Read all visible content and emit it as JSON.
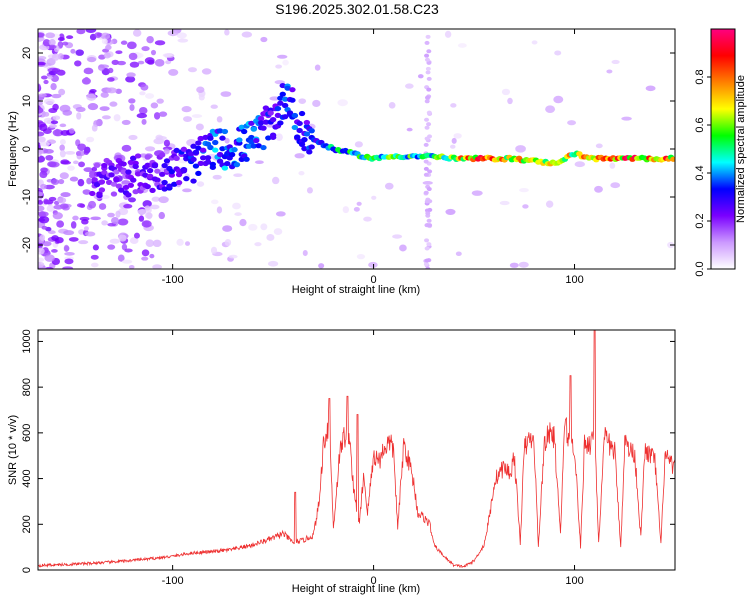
{
  "title": "S196.2025.302.01.58.C23",
  "chart_data": [
    {
      "type": "heatmap",
      "xlabel": "Height of straight line (km)",
      "ylabel": "Frequency (Hz)",
      "xlim": [
        -167,
        150
      ],
      "ylim": [
        -25,
        25
      ],
      "x_ticks": [
        -100,
        0,
        100
      ],
      "y_ticks": [
        -20,
        -10,
        0,
        10,
        20
      ],
      "colorbar": {
        "label": "Normalized spectral amplitude",
        "range": [
          0,
          1
        ],
        "ticks": [
          "0.0",
          "0.2",
          "0.4",
          "0.6",
          "0.8"
        ],
        "tick_values": [
          0,
          0.2,
          0.4,
          0.6,
          0.8
        ],
        "colors": [
          "#ffffff",
          "#cc99ff",
          "#7a00ff",
          "#0000ff",
          "#00ffff",
          "#00ff00",
          "#ffff00",
          "#ff8000",
          "#ff0000",
          "#ff0080"
        ]
      },
      "ridge": [
        {
          "x": -130,
          "y": -6,
          "amp": 0.25
        },
        {
          "x": -110,
          "y": -5,
          "amp": 0.25
        },
        {
          "x": -100,
          "y": -4,
          "amp": 0.3
        },
        {
          "x": -90,
          "y": -3,
          "amp": 0.35
        },
        {
          "x": -80,
          "y": 0,
          "amp": 0.4
        },
        {
          "x": -70,
          "y": 0,
          "amp": 0.4
        },
        {
          "x": -60,
          "y": 2,
          "amp": 0.4
        },
        {
          "x": -50,
          "y": 6,
          "amp": 0.3
        },
        {
          "x": -42,
          "y": 12,
          "amp": 0.4
        },
        {
          "x": -38,
          "y": 4,
          "amp": 0.35
        },
        {
          "x": -30,
          "y": 2,
          "amp": 0.35
        },
        {
          "x": -20,
          "y": 0,
          "amp": 0.5
        },
        {
          "x": -10,
          "y": -1,
          "amp": 0.55
        },
        {
          "x": 0,
          "y": -2,
          "amp": 0.6
        },
        {
          "x": 10,
          "y": -1.5,
          "amp": 0.6
        },
        {
          "x": 20,
          "y": -1.5,
          "amp": 0.55
        },
        {
          "x": 30,
          "y": -1.5,
          "amp": 0.55
        },
        {
          "x": 40,
          "y": -2,
          "amp": 0.8
        },
        {
          "x": 50,
          "y": -2,
          "amp": 0.9
        },
        {
          "x": 60,
          "y": -2,
          "amp": 0.9
        },
        {
          "x": 70,
          "y": -2,
          "amp": 0.8
        },
        {
          "x": 80,
          "y": -2.5,
          "amp": 0.75
        },
        {
          "x": 90,
          "y": -3,
          "amp": 0.7
        },
        {
          "x": 100,
          "y": -1,
          "amp": 0.75
        },
        {
          "x": 110,
          "y": -2,
          "amp": 0.8
        },
        {
          "x": 120,
          "y": -2,
          "amp": 0.9
        },
        {
          "x": 130,
          "y": -2,
          "amp": 0.9
        },
        {
          "x": 140,
          "y": -2,
          "amp": 0.9
        },
        {
          "x": 150,
          "y": -2,
          "amp": 0.85
        }
      ]
    },
    {
      "type": "line",
      "xlabel": "Height of straight line (km)",
      "ylabel": "SNR (10 * v/v)",
      "xlim": [
        -167,
        150
      ],
      "ylim": [
        0,
        1050
      ],
      "x_ticks": [
        -100,
        0,
        100
      ],
      "y_ticks": [
        0,
        200,
        400,
        600,
        800,
        1000
      ],
      "series": [
        {
          "color": "#ee3030",
          "x": [
            -167,
            -150,
            -130,
            -110,
            -100,
            -90,
            -80,
            -70,
            -60,
            -50,
            -45,
            -40,
            -35,
            -30,
            -27,
            -25,
            -22,
            -20,
            -17,
            -15,
            -12,
            -10,
            -7,
            -5,
            -3,
            0,
            3,
            5,
            8,
            10,
            12,
            15,
            18,
            20,
            22,
            25,
            28,
            30,
            35,
            40,
            45,
            50,
            55,
            58,
            60,
            62,
            65,
            68,
            70,
            73,
            75,
            78,
            80,
            82,
            85,
            88,
            90,
            93,
            95,
            98,
            100,
            103,
            105,
            108,
            110,
            112,
            115,
            118,
            120,
            123,
            125,
            128,
            130,
            133,
            135,
            138,
            140,
            143,
            145,
            148,
            150
          ],
          "y": [
            20,
            25,
            35,
            50,
            60,
            75,
            80,
            90,
            110,
            140,
            160,
            120,
            130,
            150,
            300,
            550,
            650,
            180,
            500,
            580,
            600,
            350,
            200,
            420,
            250,
            500,
            480,
            530,
            560,
            520,
            180,
            550,
            460,
            380,
            250,
            230,
            200,
            110,
            60,
            20,
            15,
            40,
            110,
            250,
            380,
            420,
            450,
            420,
            500,
            120,
            530,
            580,
            540,
            100,
            560,
            600,
            580,
            150,
            640,
            560,
            540,
            100,
            560,
            550,
            620,
            120,
            580,
            540,
            520,
            100,
            560,
            520,
            510,
            140,
            520,
            500,
            480,
            110,
            500,
            460,
            450
          ]
        }
      ],
      "peaks": [
        {
          "x": -39,
          "y": 340
        },
        {
          "x": -22,
          "y": 750
        },
        {
          "x": -13,
          "y": 760
        },
        {
          "x": -8,
          "y": 680
        },
        {
          "x": 98,
          "y": 850
        },
        {
          "x": 110,
          "y": 1050
        }
      ]
    }
  ]
}
